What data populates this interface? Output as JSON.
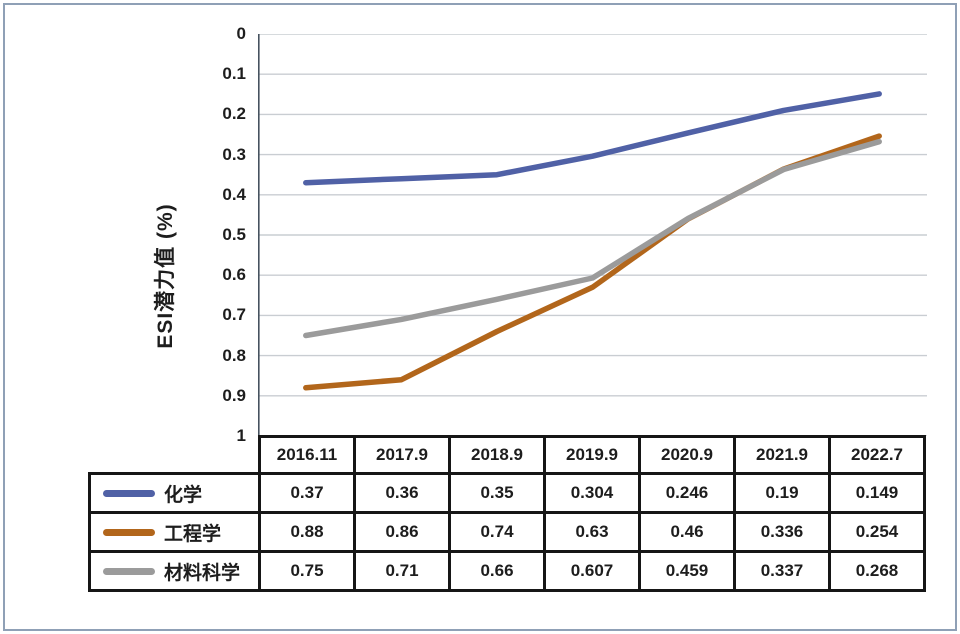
{
  "chart_data": {
    "type": "line",
    "title": "",
    "xlabel": "",
    "ylabel": "ESI潜力值 (%)",
    "y_axis_inverted": true,
    "ylim": [
      0,
      1
    ],
    "yticks": [
      "0",
      "0.1",
      "0.2",
      "0.3",
      "0.4",
      "0.5",
      "0.6",
      "0.7",
      "0.8",
      "0.9",
      "1"
    ],
    "categories": [
      "2016.11",
      "2017.9",
      "2018.9",
      "2019.9",
      "2020.9",
      "2021.9",
      "2022.7"
    ],
    "series": [
      {
        "id": "chemistry",
        "name": "化学",
        "color": "#5061A6",
        "values": [
          0.37,
          0.36,
          0.35,
          0.304,
          0.246,
          0.19,
          0.149
        ]
      },
      {
        "id": "engineering",
        "name": "工程学",
        "color": "#B2661B",
        "values": [
          0.88,
          0.86,
          0.74,
          0.63,
          0.46,
          0.336,
          0.254
        ]
      },
      {
        "id": "materials",
        "name": "材料科学",
        "color": "#9B9B9B",
        "values": [
          0.75,
          0.71,
          0.66,
          0.607,
          0.459,
          0.337,
          0.268
        ]
      }
    ],
    "grid": true,
    "legend_position": "table-left"
  },
  "colors": {
    "background": "#ffffff",
    "frame_border": "#8FA0B6",
    "gridline": "#c9cdd2",
    "axis_line": "#46525f",
    "table_border": "#161616",
    "text": "#1d1d1d"
  }
}
